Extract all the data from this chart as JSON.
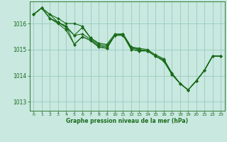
{
  "background_color": "#c8e8e0",
  "grid_color": "#99ccbb",
  "line_color": "#1a6b1a",
  "marker_color": "#1a6b1a",
  "xlabel": "Graphe pression niveau de la mer (hPa)",
  "xlim": [
    -0.5,
    23.5
  ],
  "ylim": [
    1012.65,
    1016.85
  ],
  "yticks": [
    1013,
    1014,
    1015,
    1016
  ],
  "xticks": [
    0,
    1,
    2,
    3,
    4,
    5,
    6,
    7,
    8,
    9,
    10,
    11,
    12,
    13,
    14,
    15,
    16,
    17,
    18,
    19,
    20,
    21,
    22,
    23
  ],
  "series": [
    [
      1016.35,
      1016.6,
      1016.2,
      1016.05,
      1015.85,
      1015.55,
      1015.85,
      1015.45,
      1015.2,
      1015.15,
      1015.55,
      1015.6,
      1015.1,
      1015.0,
      1014.95,
      1014.75,
      1014.6,
      1014.05,
      1013.7,
      1013.45,
      1013.8,
      1014.2,
      1014.75,
      1014.75
    ],
    [
      1016.35,
      1016.6,
      1016.2,
      1016.05,
      1015.9,
      1015.2,
      1015.5,
      1015.35,
      1015.1,
      1015.05,
      1015.55,
      1015.55,
      1015.0,
      1014.95,
      1014.95,
      1014.75,
      1014.6,
      1014.05,
      1013.7,
      1013.45,
      1013.8,
      1014.2,
      1014.75,
      1014.75
    ],
    [
      1016.35,
      1016.6,
      1016.2,
      1016.0,
      1015.75,
      1015.2,
      1015.5,
      1015.35,
      1015.1,
      1015.05,
      1015.55,
      1015.6,
      1015.0,
      1014.95,
      1014.95,
      1014.75,
      1014.55,
      1014.05,
      1013.7,
      1013.45,
      1013.8,
      1014.2,
      1014.75,
      1014.75
    ],
    [
      1016.35,
      1016.6,
      1016.35,
      1016.05,
      1015.9,
      1015.55,
      1015.6,
      1015.4,
      1015.15,
      1015.1,
      1015.55,
      1015.55,
      1015.05,
      1015.0,
      1014.95,
      1014.75,
      1014.6,
      1014.1,
      1013.7,
      1013.45,
      1013.8,
      1014.2,
      1014.75,
      1014.75
    ],
    [
      1016.35,
      1016.6,
      1016.35,
      1016.2,
      1016.0,
      1016.0,
      1015.9,
      1015.45,
      1015.25,
      1015.2,
      1015.6,
      1015.6,
      1015.1,
      1015.05,
      1015.0,
      1014.8,
      1014.65,
      1014.1,
      1013.7,
      1013.45,
      1013.8,
      1014.2,
      1014.75,
      1014.75
    ]
  ]
}
